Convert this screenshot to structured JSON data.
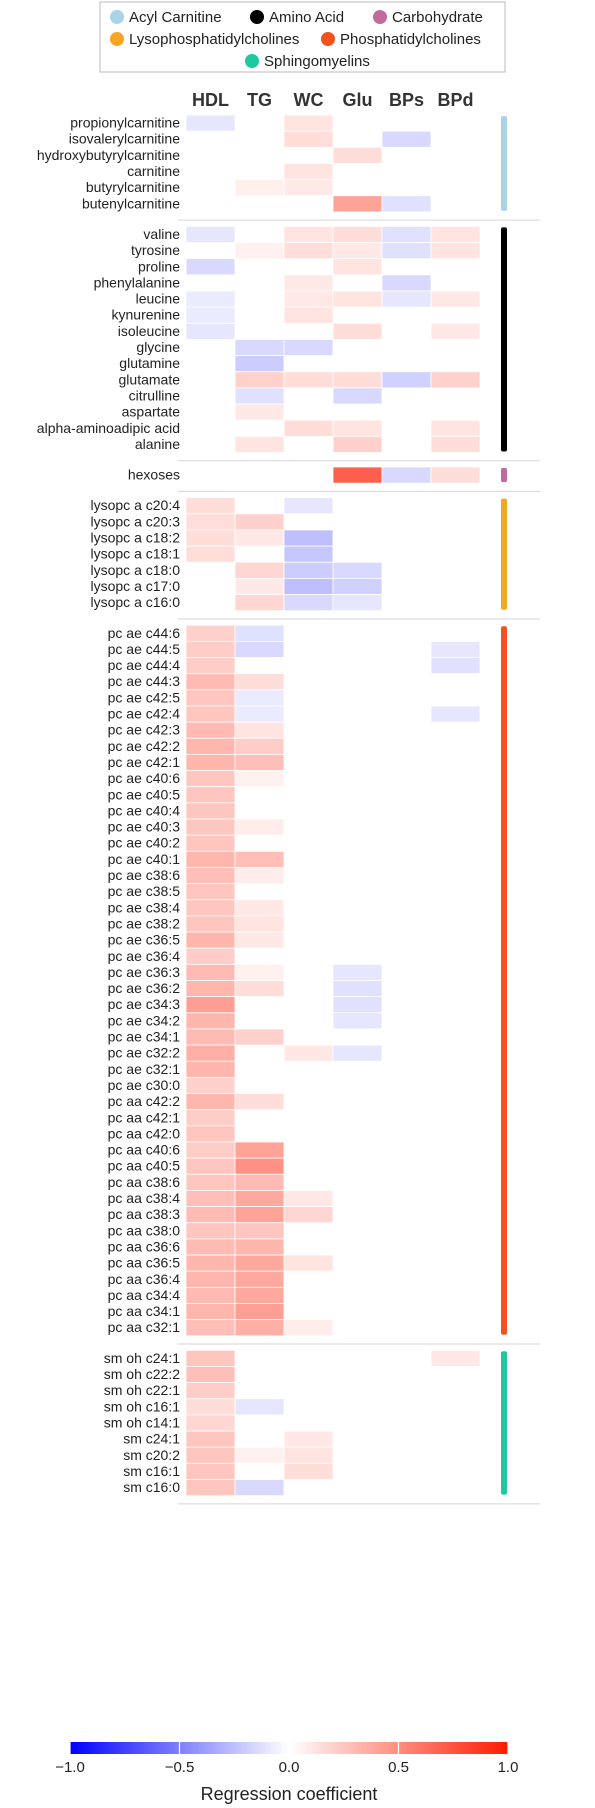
{
  "chart_data": {
    "type": "heatmap",
    "columns": [
      "HDL",
      "TG",
      "WC",
      "Glu",
      "BPs",
      "BPd"
    ],
    "legend": [
      {
        "label": "Acyl Carnitine",
        "color": "#a8d4e6"
      },
      {
        "label": "Amino Acid",
        "color": "#000000"
      },
      {
        "label": "Carbohydrate",
        "color": "#c06a9e"
      },
      {
        "label": "Lysophosphatidylcholines",
        "color": "#f5a623"
      },
      {
        "label": "Phosphatidylcholines",
        "color": "#f4511e"
      },
      {
        "label": "Sphingomyelins",
        "color": "#1ec8a0"
      }
    ],
    "colorbar": {
      "title": "Regression coefficient",
      "min": -1.0,
      "max": 1.0,
      "ticks": [
        "−1.0",
        "−0.5",
        "0.0",
        "0.5",
        "1.0"
      ],
      "tick_values": [
        -1.0,
        -0.5,
        0.0,
        0.5,
        1.0
      ]
    },
    "groups": [
      {
        "name": "Acyl Carnitine",
        "color": "#a8d4e6",
        "rows": [
          {
            "label": "propionylcarnitine",
            "values": [
              -0.1,
              null,
              0.12,
              null,
              null,
              null
            ]
          },
          {
            "label": "isovalerylcarnitine",
            "values": [
              null,
              null,
              0.15,
              null,
              -0.15,
              null
            ]
          },
          {
            "label": "hydroxybutyrylcarnitine",
            "values": [
              null,
              null,
              null,
              0.15,
              null,
              null
            ]
          },
          {
            "label": "carnitine",
            "values": [
              null,
              null,
              0.12,
              null,
              null,
              null
            ]
          },
          {
            "label": "butyrylcarnitine",
            "values": [
              null,
              0.07,
              0.09,
              null,
              null,
              null
            ]
          },
          {
            "label": "butenylcarnitine",
            "values": [
              null,
              null,
              null,
              0.4,
              -0.12,
              null
            ]
          }
        ]
      },
      {
        "name": "Amino Acid",
        "color": "#000000",
        "rows": [
          {
            "label": "valine",
            "values": [
              -0.1,
              null,
              0.12,
              0.15,
              -0.12,
              0.12
            ]
          },
          {
            "label": "tyrosine",
            "values": [
              null,
              0.06,
              0.15,
              0.1,
              -0.12,
              0.12
            ]
          },
          {
            "label": "proline",
            "values": [
              -0.15,
              null,
              null,
              0.12,
              null,
              null
            ]
          },
          {
            "label": "phenylalanine",
            "values": [
              null,
              null,
              0.1,
              null,
              -0.15,
              null
            ]
          },
          {
            "label": "leucine",
            "values": [
              -0.08,
              null,
              0.1,
              0.12,
              -0.1,
              0.1
            ]
          },
          {
            "label": "kynurenine",
            "values": [
              -0.08,
              null,
              0.12,
              null,
              null,
              null
            ]
          },
          {
            "label": "isoleucine",
            "values": [
              -0.1,
              null,
              null,
              0.15,
              null,
              0.1
            ]
          },
          {
            "label": "glycine",
            "values": [
              null,
              -0.15,
              -0.15,
              null,
              null,
              null
            ]
          },
          {
            "label": "glutamine",
            "values": [
              null,
              -0.2,
              null,
              null,
              null,
              null
            ]
          },
          {
            "label": "glutamate",
            "values": [
              null,
              0.2,
              0.15,
              0.15,
              -0.18,
              0.2
            ]
          },
          {
            "label": "citrulline",
            "values": [
              null,
              -0.12,
              null,
              -0.15,
              null,
              null
            ]
          },
          {
            "label": "aspartate",
            "values": [
              null,
              0.1,
              null,
              null,
              null,
              null
            ]
          },
          {
            "label": "alpha-aminoadipic acid",
            "values": [
              null,
              null,
              0.15,
              0.12,
              null,
              0.12
            ]
          },
          {
            "label": "alanine",
            "values": [
              null,
              0.12,
              null,
              0.2,
              null,
              0.15
            ]
          }
        ]
      },
      {
        "name": "Carbohydrate",
        "color": "#c06a9e",
        "rows": [
          {
            "label": "hexoses",
            "values": [
              null,
              null,
              null,
              0.7,
              -0.15,
              0.15
            ]
          }
        ]
      },
      {
        "name": "Lysophosphatidylcholines",
        "color": "#f5a623",
        "rows": [
          {
            "label": "lysopc a c20:4",
            "values": [
              0.15,
              null,
              -0.1,
              null,
              null,
              null
            ]
          },
          {
            "label": "lysopc a c20:3",
            "values": [
              0.15,
              0.2,
              null,
              null,
              null,
              null
            ]
          },
          {
            "label": "lysopc a c18:2",
            "values": [
              0.15,
              0.1,
              -0.25,
              null,
              null,
              null
            ]
          },
          {
            "label": "lysopc a c18:1",
            "values": [
              0.15,
              null,
              -0.22,
              null,
              null,
              null
            ]
          },
          {
            "label": "lysopc a c18:0",
            "values": [
              null,
              0.18,
              -0.2,
              -0.15,
              null,
              null
            ]
          },
          {
            "label": "lysopc a c17:0",
            "values": [
              null,
              0.1,
              -0.25,
              -0.18,
              null,
              null
            ]
          },
          {
            "label": "lysopc a c16:0",
            "values": [
              null,
              0.18,
              -0.15,
              -0.1,
              null,
              null
            ]
          }
        ]
      },
      {
        "name": "Phosphatidylcholines",
        "color": "#f4511e",
        "rows": [
          {
            "label": "pc ae c44:6",
            "values": [
              0.2,
              -0.12,
              null,
              null,
              null,
              null
            ]
          },
          {
            "label": "pc ae c44:5",
            "values": [
              0.22,
              -0.15,
              null,
              null,
              null,
              -0.1
            ]
          },
          {
            "label": "pc ae c44:4",
            "values": [
              0.22,
              null,
              null,
              null,
              null,
              -0.12
            ]
          },
          {
            "label": "pc ae c44:3",
            "values": [
              0.3,
              0.15,
              null,
              null,
              null,
              null
            ]
          },
          {
            "label": "pc ae c42:5",
            "values": [
              0.25,
              -0.08,
              null,
              null,
              null,
              null
            ]
          },
          {
            "label": "pc ae c42:4",
            "values": [
              0.25,
              -0.08,
              null,
              null,
              null,
              -0.1
            ]
          },
          {
            "label": "pc ae c42:3",
            "values": [
              0.3,
              0.12,
              null,
              null,
              null,
              null
            ]
          },
          {
            "label": "pc ae c42:2",
            "values": [
              0.32,
              0.22,
              null,
              null,
              null,
              null
            ]
          },
          {
            "label": "pc ae c42:1",
            "values": [
              0.32,
              0.28,
              null,
              null,
              null,
              null
            ]
          },
          {
            "label": "pc ae c40:6",
            "values": [
              0.25,
              0.06,
              null,
              null,
              null,
              null
            ]
          },
          {
            "label": "pc ae c40:5",
            "values": [
              0.25,
              null,
              null,
              null,
              null,
              null
            ]
          },
          {
            "label": "pc ae c40:4",
            "values": [
              0.25,
              null,
              null,
              null,
              null,
              null
            ]
          },
          {
            "label": "pc ae c40:3",
            "values": [
              0.25,
              0.08,
              null,
              null,
              null,
              null
            ]
          },
          {
            "label": "pc ae c40:2",
            "values": [
              0.25,
              null,
              null,
              null,
              null,
              null
            ]
          },
          {
            "label": "pc ae c40:1",
            "values": [
              0.32,
              0.28,
              null,
              null,
              null,
              null
            ]
          },
          {
            "label": "pc ae c38:6",
            "values": [
              0.28,
              0.08,
              null,
              null,
              null,
              null
            ]
          },
          {
            "label": "pc ae c38:5",
            "values": [
              0.25,
              null,
              null,
              null,
              null,
              null
            ]
          },
          {
            "label": "pc ae c38:4",
            "values": [
              0.25,
              0.1,
              null,
              null,
              null,
              null
            ]
          },
          {
            "label": "pc ae c38:2",
            "values": [
              0.25,
              0.12,
              null,
              null,
              null,
              null
            ]
          },
          {
            "label": "pc ae c36:5",
            "values": [
              0.32,
              0.1,
              null,
              null,
              null,
              null
            ]
          },
          {
            "label": "pc ae c36:4",
            "values": [
              0.22,
              null,
              null,
              null,
              null,
              null
            ]
          },
          {
            "label": "pc ae c36:3",
            "values": [
              0.3,
              0.06,
              null,
              -0.1,
              null,
              null
            ]
          },
          {
            "label": "pc ae c36:2",
            "values": [
              0.32,
              0.15,
              null,
              -0.12,
              null,
              null
            ]
          },
          {
            "label": "pc ae c34:3",
            "values": [
              0.42,
              null,
              null,
              -0.12,
              null,
              null
            ]
          },
          {
            "label": "pc ae c34:2",
            "values": [
              0.32,
              null,
              null,
              -0.1,
              null,
              null
            ]
          },
          {
            "label": "pc ae c34:1",
            "values": [
              0.3,
              0.2,
              null,
              null,
              null,
              null
            ]
          },
          {
            "label": "pc ae c32:2",
            "values": [
              0.35,
              null,
              0.1,
              -0.1,
              null,
              null
            ]
          },
          {
            "label": "pc ae c32:1",
            "values": [
              0.32,
              null,
              null,
              null,
              null,
              null
            ]
          },
          {
            "label": "pc ae c30:0",
            "values": [
              0.2,
              null,
              null,
              null,
              null,
              null
            ]
          },
          {
            "label": "pc aa c42:2",
            "values": [
              0.32,
              0.15,
              null,
              null,
              null,
              null
            ]
          },
          {
            "label": "pc aa c42:1",
            "values": [
              0.22,
              null,
              null,
              null,
              null,
              null
            ]
          },
          {
            "label": "pc aa c42:0",
            "values": [
              0.25,
              null,
              null,
              null,
              null,
              null
            ]
          },
          {
            "label": "pc aa c40:6",
            "values": [
              0.22,
              0.4,
              null,
              null,
              null,
              null
            ]
          },
          {
            "label": "pc aa c40:5",
            "values": [
              0.25,
              0.48,
              null,
              null,
              null,
              null
            ]
          },
          {
            "label": "pc aa c38:6",
            "values": [
              0.25,
              0.3,
              null,
              null,
              null,
              null
            ]
          },
          {
            "label": "pc aa c38:4",
            "values": [
              0.28,
              0.38,
              0.1,
              null,
              null,
              null
            ]
          },
          {
            "label": "pc aa c38:3",
            "values": [
              0.3,
              0.4,
              0.18,
              null,
              null,
              null
            ]
          },
          {
            "label": "pc aa c38:0",
            "values": [
              0.25,
              0.25,
              null,
              null,
              null,
              null
            ]
          },
          {
            "label": "pc aa c36:6",
            "values": [
              0.3,
              0.32,
              null,
              null,
              null,
              null
            ]
          },
          {
            "label": "pc aa c36:5",
            "values": [
              0.32,
              0.38,
              0.12,
              null,
              null,
              null
            ]
          },
          {
            "label": "pc aa c36:4",
            "values": [
              0.32,
              0.38,
              null,
              null,
              null,
              null
            ]
          },
          {
            "label": "pc aa c34:4",
            "values": [
              0.3,
              0.38,
              null,
              null,
              null,
              null
            ]
          },
          {
            "label": "pc aa c34:1",
            "values": [
              0.32,
              0.42,
              null,
              null,
              null,
              null
            ]
          },
          {
            "label": "pc aa c32:1",
            "values": [
              0.28,
              0.35,
              0.08,
              null,
              null,
              null
            ]
          }
        ]
      },
      {
        "name": "Sphingomyelins",
        "color": "#1ec8a0",
        "rows": [
          {
            "label": "sm oh c24:1",
            "values": [
              0.25,
              null,
              null,
              null,
              null,
              0.1
            ]
          },
          {
            "label": "sm oh c22:2",
            "values": [
              0.28,
              null,
              null,
              null,
              null,
              null
            ]
          },
          {
            "label": "sm oh c22:1",
            "values": [
              0.22,
              null,
              null,
              null,
              null,
              null
            ]
          },
          {
            "label": "sm oh c16:1",
            "values": [
              0.15,
              -0.1,
              null,
              null,
              null,
              null
            ]
          },
          {
            "label": "sm oh c14:1",
            "values": [
              0.18,
              null,
              null,
              null,
              null,
              null
            ]
          },
          {
            "label": "sm c24:1",
            "values": [
              0.25,
              null,
              0.1,
              null,
              null,
              null
            ]
          },
          {
            "label": "sm c20:2",
            "values": [
              0.25,
              0.06,
              0.12,
              null,
              null,
              null
            ]
          },
          {
            "label": "sm c16:1",
            "values": [
              0.25,
              null,
              0.15,
              null,
              null,
              null
            ]
          },
          {
            "label": "sm c16:0",
            "values": [
              0.25,
              -0.15,
              null,
              null,
              null,
              null
            ]
          }
        ]
      }
    ]
  }
}
